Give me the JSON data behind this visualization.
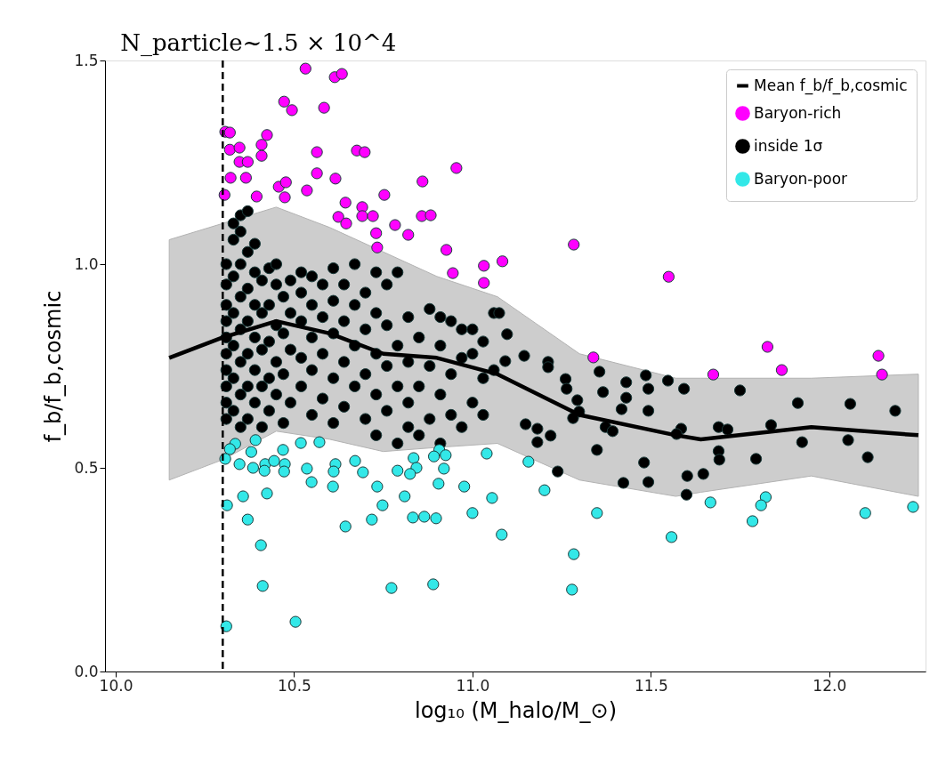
{
  "chart_data": {
    "type": "scatter",
    "xlabel": "log₁₀ (M_halo/M_⊙)",
    "ylabel": "f_b/f_b,cosmic",
    "xlim": [
      9.97,
      12.27
    ],
    "ylim": [
      0,
      1.5
    ],
    "xticks": [
      {
        "value": 10,
        "label": "10.0"
      },
      10.5,
      {
        "value": 11,
        "label": "11.0"
      },
      11.5,
      {
        "value": 12,
        "label": "12.0"
      }
    ],
    "yticks": [
      {
        "value": 0,
        "label": "0.0"
      },
      0.5,
      {
        "value": 1,
        "label": "1.0"
      },
      1.5
    ],
    "grid": false,
    "legend": "top right",
    "marker": "circle",
    "ref_lines": [
      {
        "axis": "x",
        "value": 10.3,
        "label": "N_particle~1.5 × 10^4",
        "line_style": "dashed",
        "color": "#000000"
      }
    ],
    "series": [
      {
        "type": "line",
        "marker": "none",
        "name": "Mean f_b/f_b,cosmic",
        "color": "#000000",
        "x": [
          10.15,
          10.3,
          10.45,
          10.6,
          10.75,
          10.9,
          11.07,
          11.3,
          11.57,
          11.64,
          11.95,
          12.25
        ],
        "values": [
          0.77,
          0.82,
          0.86,
          0.83,
          0.78,
          0.77,
          0.73,
          0.63,
          0.58,
          0.57,
          0.6,
          0.58
        ],
        "lower": [
          0.47,
          0.52,
          0.59,
          0.57,
          0.54,
          0.55,
          0.56,
          0.47,
          0.43,
          0.44,
          0.48,
          0.43
        ],
        "upper": [
          1.06,
          1.1,
          1.14,
          1.09,
          1.03,
          0.97,
          0.92,
          0.78,
          0.72,
          0.72,
          0.72,
          0.73
        ]
      },
      {
        "name": "Baryon-rich",
        "color": "#ff00ff",
        "x": [
          10.532,
          10.614,
          10.634,
          10.472,
          10.494,
          10.584,
          10.307,
          10.32,
          10.32,
          10.347,
          10.347,
          10.37,
          10.424,
          10.409,
          10.409,
          10.322,
          10.365,
          10.305,
          10.395,
          10.457,
          10.477,
          10.474,
          10.536,
          10.564,
          10.564,
          10.616,
          10.676,
          10.698,
          10.955,
          10.86,
          10.753,
          10.644,
          10.691,
          10.691,
          10.624,
          10.646,
          10.721,
          10.783,
          10.82,
          10.73,
          10.733,
          10.858,
          10.883,
          10.927,
          10.945,
          11.032,
          11.084,
          11.032,
          11.284,
          11.55,
          11.339,
          11.827,
          11.867,
          11.675,
          12.138,
          12.148
        ],
        "values": [
          1.48,
          1.459,
          1.467,
          1.399,
          1.378,
          1.384,
          1.325,
          1.323,
          1.281,
          1.286,
          1.251,
          1.251,
          1.317,
          1.293,
          1.266,
          1.212,
          1.212,
          1.17,
          1.166,
          1.19,
          1.201,
          1.164,
          1.181,
          1.275,
          1.223,
          1.21,
          1.279,
          1.275,
          1.236,
          1.203,
          1.17,
          1.151,
          1.14,
          1.118,
          1.116,
          1.1,
          1.118,
          1.096,
          1.072,
          1.076,
          1.041,
          1.118,
          1.12,
          1.035,
          0.978,
          0.996,
          1.007,
          0.954,
          1.048,
          0.969,
          0.771,
          0.797,
          0.74,
          0.729,
          0.775,
          0.729
        ]
      },
      {
        "name": "inside 1σ",
        "color": "#000000",
        "x": [
          10.31,
          10.31,
          10.31,
          10.31,
          10.31,
          10.31,
          10.31,
          10.31,
          10.31,
          10.31,
          10.33,
          10.33,
          10.33,
          10.33,
          10.33,
          10.33,
          10.33,
          10.35,
          10.35,
          10.35,
          10.35,
          10.35,
          10.35,
          10.35,
          10.35,
          10.37,
          10.37,
          10.37,
          10.37,
          10.37,
          10.37,
          10.37,
          10.39,
          10.39,
          10.39,
          10.39,
          10.39,
          10.39,
          10.41,
          10.41,
          10.41,
          10.41,
          10.41,
          10.43,
          10.43,
          10.43,
          10.43,
          10.43,
          10.45,
          10.45,
          10.45,
          10.45,
          10.45,
          10.47,
          10.47,
          10.47,
          10.47,
          10.49,
          10.49,
          10.49,
          10.49,
          10.52,
          10.52,
          10.52,
          10.52,
          10.52,
          10.55,
          10.55,
          10.55,
          10.55,
          10.55,
          10.58,
          10.58,
          10.58,
          10.58,
          10.61,
          10.61,
          10.61,
          10.61,
          10.61,
          10.64,
          10.64,
          10.64,
          10.64,
          10.67,
          10.67,
          10.67,
          10.67,
          10.7,
          10.7,
          10.7,
          10.7,
          10.73,
          10.73,
          10.73,
          10.73,
          10.73,
          10.76,
          10.76,
          10.76,
          10.76,
          10.79,
          10.79,
          10.79,
          10.79,
          10.82,
          10.82,
          10.82,
          10.82,
          10.85,
          10.85,
          10.85,
          10.88,
          10.88,
          10.88,
          10.91,
          10.91,
          10.91,
          10.91,
          10.94,
          10.94,
          10.94,
          10.97,
          10.97,
          10.97,
          11.0,
          11.0,
          11.0,
          11.03,
          11.03,
          11.03,
          11.06,
          11.06,
          11.075,
          11.097,
          11.145,
          11.092,
          11.212,
          11.212,
          11.261,
          11.264,
          11.294,
          11.299,
          11.282,
          11.149,
          11.182,
          11.219,
          11.182,
          11.239,
          11.349,
          11.356,
          11.366,
          11.373,
          11.393,
          11.431,
          11.431,
          11.418,
          11.486,
          11.493,
          11.493,
          11.481,
          11.493,
          11.423,
          11.548,
          11.593,
          11.585,
          11.572,
          11.602,
          11.647,
          11.6,
          11.69,
          11.69,
          11.692,
          11.715,
          11.75,
          11.795,
          11.837,
          11.912,
          11.924,
          12.059,
          12.053,
          12.108,
          12.185
        ],
        "values": [
          0.62,
          0.66,
          0.7,
          0.74,
          0.78,
          0.82,
          0.86,
          0.9,
          0.95,
          1.0,
          0.64,
          0.72,
          0.8,
          0.88,
          0.97,
          1.06,
          1.1,
          0.6,
          0.68,
          0.76,
          0.84,
          0.92,
          1.0,
          1.08,
          1.12,
          0.62,
          0.7,
          0.78,
          0.86,
          0.94,
          1.03,
          1.13,
          0.66,
          0.74,
          0.82,
          0.9,
          0.98,
          1.05,
          0.6,
          0.7,
          0.79,
          0.88,
          0.96,
          0.64,
          0.72,
          0.81,
          0.9,
          0.99,
          0.68,
          0.76,
          0.85,
          0.95,
          1.0,
          0.61,
          0.73,
          0.83,
          0.92,
          0.66,
          0.79,
          0.88,
          0.96,
          0.7,
          0.77,
          0.86,
          0.93,
          0.98,
          0.63,
          0.74,
          0.82,
          0.9,
          0.97,
          0.67,
          0.78,
          0.87,
          0.95,
          0.61,
          0.72,
          0.83,
          0.91,
          0.99,
          0.65,
          0.76,
          0.86,
          0.95,
          0.7,
          0.8,
          0.9,
          1.0,
          0.62,
          0.73,
          0.84,
          0.93,
          0.58,
          0.68,
          0.78,
          0.88,
          0.98,
          0.64,
          0.75,
          0.85,
          0.95,
          0.56,
          0.7,
          0.8,
          0.98,
          0.6,
          0.66,
          0.76,
          0.87,
          0.58,
          0.7,
          0.82,
          0.62,
          0.75,
          0.89,
          0.56,
          0.68,
          0.8,
          0.87,
          0.63,
          0.73,
          0.86,
          0.6,
          0.77,
          0.84,
          0.66,
          0.78,
          0.84,
          0.63,
          0.72,
          0.81,
          0.74,
          0.88,
          0.88,
          0.828,
          0.775,
          0.762,
          0.76,
          0.747,
          0.718,
          0.694,
          0.666,
          0.638,
          0.622,
          0.607,
          0.596,
          0.579,
          0.563,
          0.491,
          0.544,
          0.736,
          0.686,
          0.6,
          0.59,
          0.71,
          0.672,
          0.644,
          0.727,
          0.694,
          0.64,
          0.513,
          0.465,
          0.463,
          0.714,
          0.694,
          0.596,
          0.583,
          0.48,
          0.485,
          0.434,
          0.6,
          0.541,
          0.52,
          0.594,
          0.69,
          0.522,
          0.605,
          0.659,
          0.563,
          0.657,
          0.568,
          0.526,
          0.64
        ]
      },
      {
        "name": "Baryon-poor",
        "color": "#33e8e8",
        "x": [
          10.335,
          10.32,
          10.307,
          10.392,
          10.38,
          10.347,
          10.385,
          10.419,
          10.417,
          10.444,
          10.469,
          10.474,
          10.472,
          10.519,
          10.571,
          10.536,
          10.549,
          10.616,
          10.611,
          10.609,
          10.671,
          10.693,
          10.733,
          10.748,
          10.79,
          10.835,
          10.843,
          10.825,
          10.907,
          10.892,
          10.925,
          10.92,
          10.905,
          10.977,
          11.04,
          11.055,
          11.0,
          11.082,
          10.312,
          10.357,
          10.424,
          10.37,
          10.407,
          10.644,
          10.718,
          10.81,
          10.833,
          10.865,
          10.898,
          10.773,
          10.89,
          10.412,
          10.504,
          10.31,
          11.157,
          11.202,
          11.349,
          11.284,
          11.279,
          11.558,
          11.667,
          11.822,
          11.809,
          11.785,
          12.101,
          12.235
        ],
        "values": [
          0.559,
          0.546,
          0.522,
          0.568,
          0.539,
          0.509,
          0.5,
          0.509,
          0.493,
          0.517,
          0.544,
          0.509,
          0.491,
          0.561,
          0.563,
          0.498,
          0.465,
          0.509,
          0.491,
          0.454,
          0.517,
          0.489,
          0.454,
          0.408,
          0.493,
          0.524,
          0.5,
          0.485,
          0.544,
          0.528,
          0.531,
          0.498,
          0.461,
          0.454,
          0.535,
          0.426,
          0.389,
          0.336,
          0.408,
          0.43,
          0.437,
          0.373,
          0.31,
          0.356,
          0.373,
          0.43,
          0.378,
          0.38,
          0.376,
          0.205,
          0.214,
          0.21,
          0.122,
          0.111,
          0.515,
          0.445,
          0.389,
          0.288,
          0.201,
          0.33,
          0.415,
          0.428,
          0.408,
          0.369,
          0.389,
          0.404
        ]
      }
    ]
  }
}
